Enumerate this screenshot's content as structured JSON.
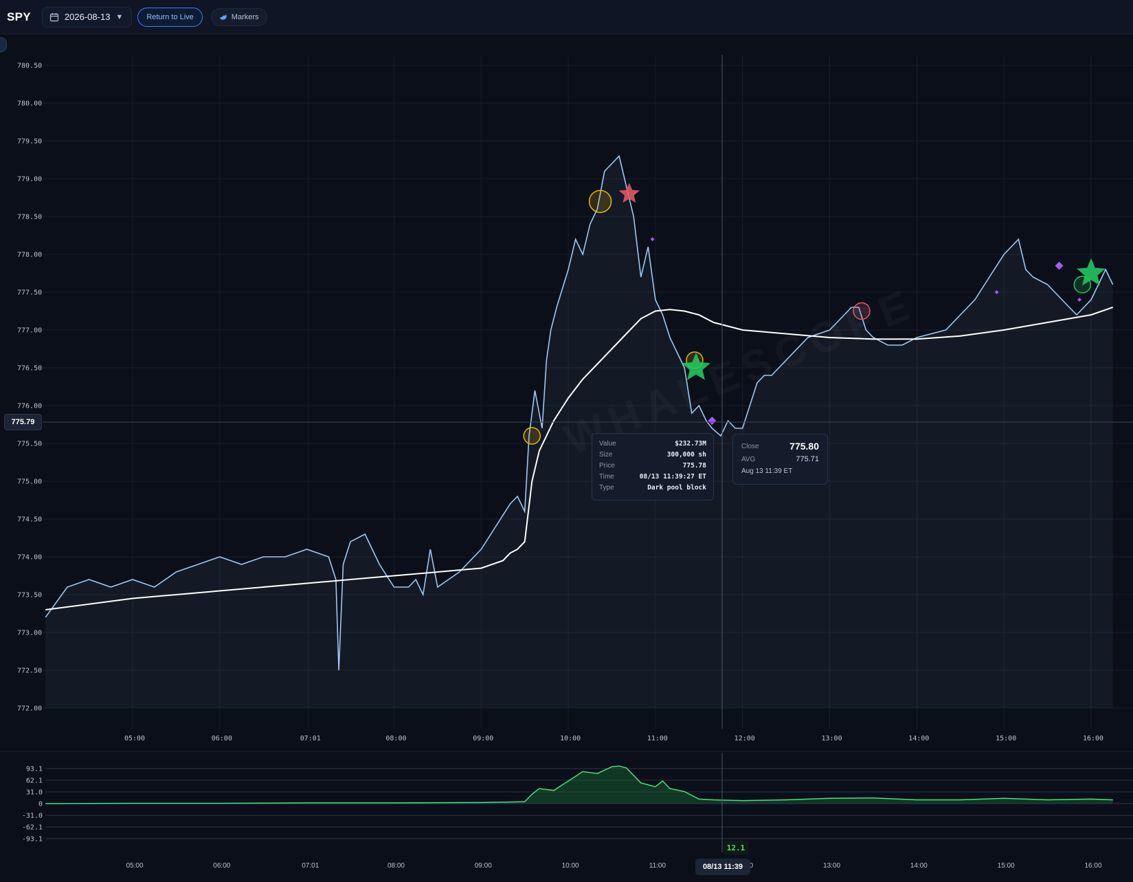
{
  "header": {
    "ticker": "SPY",
    "date": "2026-08-13",
    "return_live_label": "Return to Live",
    "markers_label": "Markers"
  },
  "colors": {
    "price_line": "#9cc9f5",
    "avg_line": "#ffffff",
    "oscillator": "#4ade80",
    "star_buy": "#22c55e",
    "star_sell": "#e05a64",
    "circle_marker": "#eab308",
    "diamond_marker": "#a855f7",
    "live_button": "#3b82f6"
  },
  "crosshair": {
    "price_label": "775.79",
    "time_label": "08/13 11:39",
    "oscillator_value": "12.1"
  },
  "trade_tooltip": {
    "rows": [
      {
        "key": "Value",
        "value": "$232.73M"
      },
      {
        "key": "Size",
        "value": "300,000 sh"
      },
      {
        "key": "Price",
        "value": "775.78"
      },
      {
        "key": "Time",
        "value": "08/13 11:39:27 ET"
      },
      {
        "key": "Type",
        "value": "Dark pool block"
      }
    ]
  },
  "bar_tooltip": {
    "close_label": "Close",
    "close_value": "775.80",
    "avg_label": "AVG",
    "avg_value": "775.71",
    "time": "Aug 13 11:39 ET"
  },
  "watermark": "WHALESCOPE",
  "chart_data": [
    {
      "type": "line",
      "ylim": [
        771.8,
        780.7
      ],
      "y_ticks": [
        "780.50",
        "780.00",
        "779.50",
        "779.00",
        "778.50",
        "778.00",
        "777.50",
        "777.00",
        "776.50",
        "776.00",
        "775.50",
        "775.00",
        "774.50",
        "774.00",
        "773.50",
        "773.00",
        "772.50",
        "772.00"
      ],
      "x_ticks": [
        "05:00",
        "06:00",
        "07:01",
        "08:00",
        "09:00",
        "10:00",
        "11:00",
        "12:00",
        "13:00",
        "14:00",
        "15:00",
        "16:00"
      ],
      "grid": true,
      "series": [
        {
          "x": [
            "04:00",
            "04:15",
            "04:30",
            "04:45",
            "05:00",
            "05:15",
            "05:30",
            "05:45",
            "06:00",
            "06:15",
            "06:30",
            "06:45",
            "07:00",
            "07:15",
            "07:20",
            "07:22",
            "07:25",
            "07:30",
            "07:40",
            "07:50",
            "08:00",
            "08:10",
            "08:15",
            "08:20",
            "08:25",
            "08:30",
            "08:45",
            "09:00",
            "09:10",
            "09:20",
            "09:25",
            "09:30",
            "09:33",
            "09:37",
            "09:42",
            "09:45",
            "09:48",
            "09:52",
            "10:00",
            "10:05",
            "10:10",
            "10:15",
            "10:20",
            "10:25",
            "10:30",
            "10:35",
            "10:40",
            "10:45",
            "10:50",
            "10:55",
            "11:00",
            "11:05",
            "11:10",
            "11:15",
            "11:20",
            "11:25",
            "11:30",
            "11:35",
            "11:39",
            "11:45",
            "11:50",
            "11:55",
            "12:00",
            "12:05",
            "12:10",
            "12:15",
            "12:20",
            "12:30",
            "12:45",
            "13:00",
            "13:10",
            "13:15",
            "13:20",
            "13:25",
            "13:30",
            "13:40",
            "13:50",
            "14:00",
            "14:20",
            "14:40",
            "14:50",
            "15:00",
            "15:05",
            "15:10",
            "15:15",
            "15:20",
            "15:30",
            "15:40",
            "15:50",
            "16:00",
            "16:05",
            "16:10",
            "16:15"
          ],
          "y": [
            773.2,
            773.6,
            773.7,
            773.6,
            773.7,
            773.6,
            773.8,
            773.9,
            774.0,
            773.9,
            774.0,
            774.0,
            774.1,
            774.0,
            773.7,
            772.5,
            773.9,
            774.2,
            774.3,
            773.9,
            773.6,
            773.6,
            773.7,
            773.5,
            774.1,
            773.6,
            773.8,
            774.1,
            774.4,
            774.7,
            774.8,
            774.6,
            775.6,
            776.2,
            775.7,
            776.6,
            777.0,
            777.3,
            777.8,
            778.2,
            778.0,
            778.4,
            778.6,
            779.1,
            779.2,
            779.3,
            778.9,
            778.5,
            777.7,
            778.1,
            777.4,
            777.2,
            776.9,
            776.7,
            776.5,
            775.9,
            776.0,
            775.8,
            775.7,
            775.6,
            775.8,
            775.7,
            775.7,
            776.0,
            776.3,
            776.4,
            776.4,
            776.6,
            776.9,
            777.0,
            777.2,
            777.3,
            777.3,
            777.0,
            776.9,
            776.8,
            776.8,
            776.9,
            777.0,
            777.4,
            777.7,
            778.0,
            778.1,
            778.2,
            777.8,
            777.7,
            777.6,
            777.4,
            777.2,
            777.4,
            777.6,
            777.8,
            777.6
          ]
        },
        {
          "x": [
            "04:00",
            "05:00",
            "06:00",
            "07:00",
            "08:00",
            "09:00",
            "09:15",
            "09:20",
            "09:25",
            "09:30",
            "09:35",
            "09:40",
            "09:50",
            "10:00",
            "10:10",
            "10:20",
            "10:30",
            "10:40",
            "10:50",
            "11:00",
            "11:10",
            "11:20",
            "11:30",
            "11:40",
            "12:00",
            "12:30",
            "13:00",
            "13:30",
            "14:00",
            "14:30",
            "15:00",
            "15:30",
            "16:00",
            "16:15"
          ],
          "y": [
            773.3,
            773.45,
            773.55,
            773.65,
            773.75,
            773.85,
            773.95,
            774.05,
            774.1,
            774.2,
            775.0,
            775.4,
            775.8,
            776.1,
            776.35,
            776.55,
            776.75,
            776.95,
            777.15,
            777.25,
            777.27,
            777.25,
            777.2,
            777.1,
            777.0,
            776.95,
            776.9,
            776.88,
            776.88,
            776.92,
            777.0,
            777.1,
            777.2,
            777.3
          ]
        }
      ],
      "markers": [
        {
          "type": "circle",
          "x": "09:35",
          "y": 775.6,
          "size": "small"
        },
        {
          "type": "circle",
          "x": "10:22",
          "y": 778.7,
          "size": "large"
        },
        {
          "type": "star",
          "x": "10:42",
          "y": 778.8,
          "color": "sell"
        },
        {
          "type": "diamond",
          "x": "10:58",
          "y": 778.2,
          "size": "tiny"
        },
        {
          "type": "circle",
          "x": "11:27",
          "y": 776.6,
          "size": "small"
        },
        {
          "type": "star",
          "x": "11:28",
          "y": 776.5,
          "color": "buy"
        },
        {
          "type": "diamond",
          "x": "11:39",
          "y": 775.8,
          "size": "small"
        },
        {
          "type": "circle",
          "x": "13:22",
          "y": 777.25,
          "size": "small",
          "color": "sell"
        },
        {
          "type": "diamond",
          "x": "14:55",
          "y": 777.5,
          "size": "tiny"
        },
        {
          "type": "diamond",
          "x": "15:38",
          "y": 777.85,
          "size": "small"
        },
        {
          "type": "circle",
          "x": "15:54",
          "y": 777.6,
          "size": "small",
          "color": "buy"
        },
        {
          "type": "star",
          "x": "16:00",
          "y": 777.75,
          "color": "buy"
        },
        {
          "type": "diamond",
          "x": "15:52",
          "y": 777.4,
          "size": "tiny"
        }
      ]
    },
    {
      "type": "area",
      "ylim": [
        -100,
        110
      ],
      "y_ticks": [
        "93.1",
        "62.1",
        "31.0",
        "0",
        "-31.0",
        "-62.1",
        "-93.1"
      ],
      "x_ticks": [
        "05:00",
        "06:00",
        "07:01",
        "08:00",
        "09:00",
        "10:00",
        "11:00",
        "12:00",
        "13:00",
        "14:00",
        "15:00",
        "16:00"
      ],
      "series": [
        {
          "x": [
            "04:00",
            "05:00",
            "06:00",
            "07:00",
            "08:00",
            "09:00",
            "09:30",
            "09:35",
            "09:40",
            "09:50",
            "10:00",
            "10:10",
            "10:20",
            "10:30",
            "10:35",
            "10:40",
            "10:50",
            "11:00",
            "11:05",
            "11:10",
            "11:20",
            "11:30",
            "11:40",
            "12:00",
            "12:30",
            "13:00",
            "13:30",
            "14:00",
            "14:30",
            "15:00",
            "15:30",
            "16:00",
            "16:15"
          ],
          "y": [
            0,
            1,
            1,
            2,
            2,
            3,
            5,
            25,
            40,
            35,
            60,
            85,
            80,
            98,
            100,
            95,
            55,
            45,
            60,
            40,
            32,
            12,
            10,
            8,
            10,
            14,
            15,
            10,
            10,
            14,
            10,
            12,
            10
          ]
        }
      ]
    }
  ]
}
